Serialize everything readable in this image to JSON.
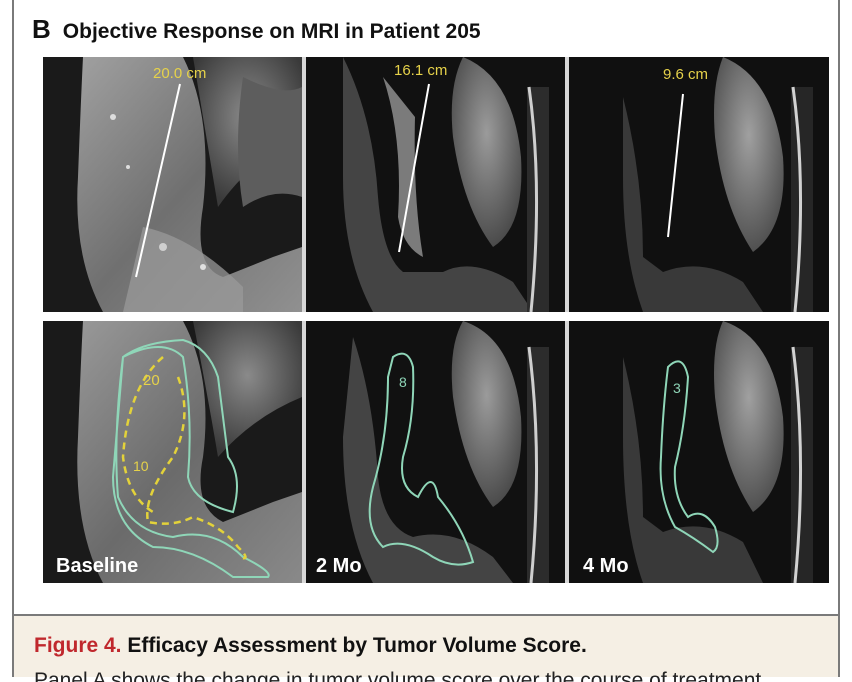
{
  "panel": {
    "letter": "B",
    "title": "Objective Response on MRI in Patient 205"
  },
  "measurements": [
    "20.0 cm",
    "16.1 cm",
    "9.6 cm"
  ],
  "volume_scores": {
    "baseline_outer": "20",
    "baseline_inner": "10",
    "two_month": "8",
    "four_month": "3"
  },
  "timepoints": [
    "Baseline",
    "2 Mo",
    "4 Mo"
  ],
  "caption": {
    "figure_label": "Figure 4.",
    "title": "Efficacy Assessment by Tumor Volume Score.",
    "continued_text": "Panel A shows the change in tumor volume score over the course of treatment"
  },
  "colors": {
    "caption_label": "#c0282d",
    "caption_background": "#f5efe4",
    "measure_label": "#e6d24a",
    "contour": "#8fd6b8",
    "dashed_contour": "#e3d23a"
  }
}
